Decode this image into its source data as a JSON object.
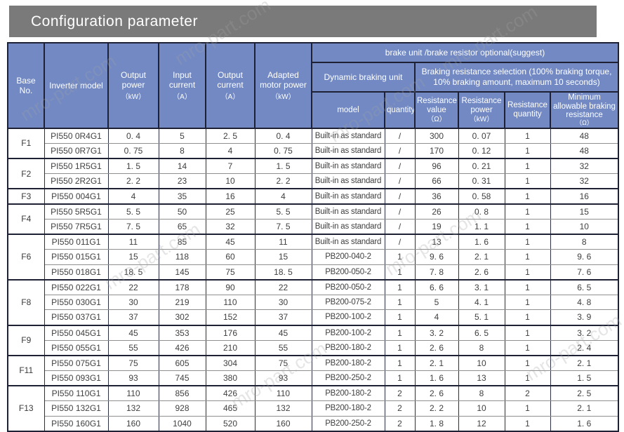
{
  "title": "Configuration parameter",
  "watermark": {
    "text": "mro-part.com"
  },
  "table": {
    "header": {
      "base": {
        "label": "Base No."
      },
      "inverter_model": {
        "label": "Inverter model"
      },
      "output_power": {
        "label": "Output power",
        "unit": "（kW）"
      },
      "input_current": {
        "label": "Input current",
        "unit": "（A）"
      },
      "output_current": {
        "label": "Output current",
        "unit": "（A）"
      },
      "motor_power": {
        "label": "Adapted motor power",
        "unit": "（kW）"
      },
      "brake_group": "brake unit /brake resistor optional(suggest)",
      "dynamic_braking_unit": "Dynamic braking unit",
      "braking_resistance_selection": "Braking resistance selection (100% braking torque, 10% braking amount, maximum 10 seconds)",
      "dbu_model": {
        "label": "model"
      },
      "dbu_quantity": {
        "label": "quantity"
      },
      "resistance_value": {
        "label": "Resistance value",
        "unit": "（Ω）"
      },
      "resistance_power": {
        "label": "Resistance power",
        "unit": "（kW）"
      },
      "resistance_quantity": {
        "label": "Resistance quantity"
      },
      "min_resistance": {
        "label": "Minimum allowable braking resistance",
        "unit": "（Ω）"
      }
    },
    "groups": [
      {
        "base": "F1",
        "rows": [
          {
            "model": "PI550 0R4G1",
            "output_power": "0. 4",
            "input_current": "5",
            "output_current": "2. 5",
            "motor_power": "0. 4",
            "dbu_model": "Built-in as standard",
            "dbu_quantity": "/",
            "resistance_value": "300",
            "resistance_power": "0. 07",
            "resistance_quantity": "1",
            "min_resistance": "48"
          },
          {
            "model": "PI550 0R7G1",
            "output_power": "0. 75",
            "input_current": "8",
            "output_current": "4",
            "motor_power": "0. 75",
            "dbu_model": "Built-in as standard",
            "dbu_quantity": "/",
            "resistance_value": "170",
            "resistance_power": "0. 12",
            "resistance_quantity": "1",
            "min_resistance": "48"
          }
        ]
      },
      {
        "base": "F2",
        "rows": [
          {
            "model": "PI550 1R5G1",
            "output_power": "1. 5",
            "input_current": "14",
            "output_current": "7",
            "motor_power": "1. 5",
            "dbu_model": "Built-in as standard",
            "dbu_quantity": "/",
            "resistance_value": "96",
            "resistance_power": "0. 21",
            "resistance_quantity": "1",
            "min_resistance": "32"
          },
          {
            "model": "PI550 2R2G1",
            "output_power": "2. 2",
            "input_current": "23",
            "output_current": "10",
            "motor_power": "2. 2",
            "dbu_model": "Built-in as standard",
            "dbu_quantity": "/",
            "resistance_value": "66",
            "resistance_power": "0. 31",
            "resistance_quantity": "1",
            "min_resistance": "32"
          }
        ]
      },
      {
        "base": "F3",
        "rows": [
          {
            "model": "PI550 004G1",
            "output_power": "4",
            "input_current": "35",
            "output_current": "16",
            "motor_power": "4",
            "dbu_model": "Built-in as standard",
            "dbu_quantity": "/",
            "resistance_value": "36",
            "resistance_power": "0. 58",
            "resistance_quantity": "1",
            "min_resistance": "16"
          }
        ]
      },
      {
        "base": "F4",
        "rows": [
          {
            "model": "PI550 5R5G1",
            "output_power": "5. 5",
            "input_current": "50",
            "output_current": "25",
            "motor_power": "5. 5",
            "dbu_model": "Built-in as standard",
            "dbu_quantity": "/",
            "resistance_value": "26",
            "resistance_power": "0. 8",
            "resistance_quantity": "1",
            "min_resistance": "15"
          },
          {
            "model": "PI550 7R5G1",
            "output_power": "7. 5",
            "input_current": "65",
            "output_current": "32",
            "motor_power": "7. 5",
            "dbu_model": "Built-in as standard",
            "dbu_quantity": "/",
            "resistance_value": "19",
            "resistance_power": "1. 1",
            "resistance_quantity": "1",
            "min_resistance": "10"
          }
        ]
      },
      {
        "base": "F6",
        "rows": [
          {
            "model": "PI550 011G1",
            "output_power": "11",
            "input_current": "85",
            "output_current": "45",
            "motor_power": "11",
            "dbu_model": "Built-in as standard",
            "dbu_quantity": "/",
            "resistance_value": "13",
            "resistance_power": "1. 6",
            "resistance_quantity": "1",
            "min_resistance": "8"
          },
          {
            "model": "PI550 015G1",
            "output_power": "15",
            "input_current": "118",
            "output_current": "60",
            "motor_power": "15",
            "dbu_model": "PB200-040-2",
            "dbu_quantity": "1",
            "resistance_value": "9. 6",
            "resistance_power": "2. 1",
            "resistance_quantity": "1",
            "min_resistance": "9. 6"
          },
          {
            "model": "PI550 018G1",
            "output_power": "18. 5",
            "input_current": "145",
            "output_current": "75",
            "motor_power": "18. 5",
            "dbu_model": "PB200-050-2",
            "dbu_quantity": "1",
            "resistance_value": "7. 8",
            "resistance_power": "2. 6",
            "resistance_quantity": "1",
            "min_resistance": "7. 6"
          }
        ]
      },
      {
        "base": "F8",
        "rows": [
          {
            "model": "PI550 022G1",
            "output_power": "22",
            "input_current": "178",
            "output_current": "90",
            "motor_power": "22",
            "dbu_model": "PB200-050-2",
            "dbu_quantity": "1",
            "resistance_value": "6. 6",
            "resistance_power": "3. 1",
            "resistance_quantity": "1",
            "min_resistance": "6. 5"
          },
          {
            "model": "PI550 030G1",
            "output_power": "30",
            "input_current": "219",
            "output_current": "110",
            "motor_power": "30",
            "dbu_model": "PB200-075-2",
            "dbu_quantity": "1",
            "resistance_value": "5",
            "resistance_power": "4. 1",
            "resistance_quantity": "1",
            "min_resistance": "4. 8"
          },
          {
            "model": "PI550 037G1",
            "output_power": "37",
            "input_current": "302",
            "output_current": "152",
            "motor_power": "37",
            "dbu_model": "PB200-100-2",
            "dbu_quantity": "1",
            "resistance_value": "4",
            "resistance_power": "5. 1",
            "resistance_quantity": "1",
            "min_resistance": "3. 9"
          }
        ]
      },
      {
        "base": "F9",
        "rows": [
          {
            "model": "PI550 045G1",
            "output_power": "45",
            "input_current": "353",
            "output_current": "176",
            "motor_power": "45",
            "dbu_model": "PB200-100-2",
            "dbu_quantity": "1",
            "resistance_value": "3. 2",
            "resistance_power": "6. 5",
            "resistance_quantity": "1",
            "min_resistance": "3. 2"
          },
          {
            "model": "PI550 055G1",
            "output_power": "55",
            "input_current": "426",
            "output_current": "210",
            "motor_power": "55",
            "dbu_model": "PB200-180-2",
            "dbu_quantity": "1",
            "resistance_value": "2. 6",
            "resistance_power": "8",
            "resistance_quantity": "1",
            "min_resistance": "2. 4"
          }
        ]
      },
      {
        "base": "F11",
        "rows": [
          {
            "model": "PI550 075G1",
            "output_power": "75",
            "input_current": "605",
            "output_current": "304",
            "motor_power": "75",
            "dbu_model": "PB200-180-2",
            "dbu_quantity": "1",
            "resistance_value": "2. 1",
            "resistance_power": "10",
            "resistance_quantity": "1",
            "min_resistance": "2. 1"
          },
          {
            "model": "PI550 093G1",
            "output_power": "93",
            "input_current": "745",
            "output_current": "380",
            "motor_power": "93",
            "dbu_model": "PB200-250-2",
            "dbu_quantity": "1",
            "resistance_value": "1. 6",
            "resistance_power": "13",
            "resistance_quantity": "1",
            "min_resistance": "1. 5"
          }
        ]
      },
      {
        "base": "F13",
        "rows": [
          {
            "model": "PI550 110G1",
            "output_power": "110",
            "input_current": "856",
            "output_current": "426",
            "motor_power": "110",
            "dbu_model": "PB200-180-2",
            "dbu_quantity": "2",
            "resistance_value": "2. 6",
            "resistance_power": "8",
            "resistance_quantity": "2",
            "min_resistance": "2. 5"
          },
          {
            "model": "PI550 132G1",
            "output_power": "132",
            "input_current": "928",
            "output_current": "465",
            "motor_power": "132",
            "dbu_model": "PB200-180-2",
            "dbu_quantity": "2",
            "resistance_value": "2. 2",
            "resistance_power": "10",
            "resistance_quantity": "1",
            "min_resistance": "2. 1"
          },
          {
            "model": "PI550 160G1",
            "output_power": "160",
            "input_current": "1040",
            "output_current": "520",
            "motor_power": "160",
            "dbu_model": "PB200-250-2",
            "dbu_quantity": "2",
            "resistance_value": "1. 8",
            "resistance_power": "12",
            "resistance_quantity": "1",
            "min_resistance": "1. 6"
          }
        ]
      }
    ]
  }
}
